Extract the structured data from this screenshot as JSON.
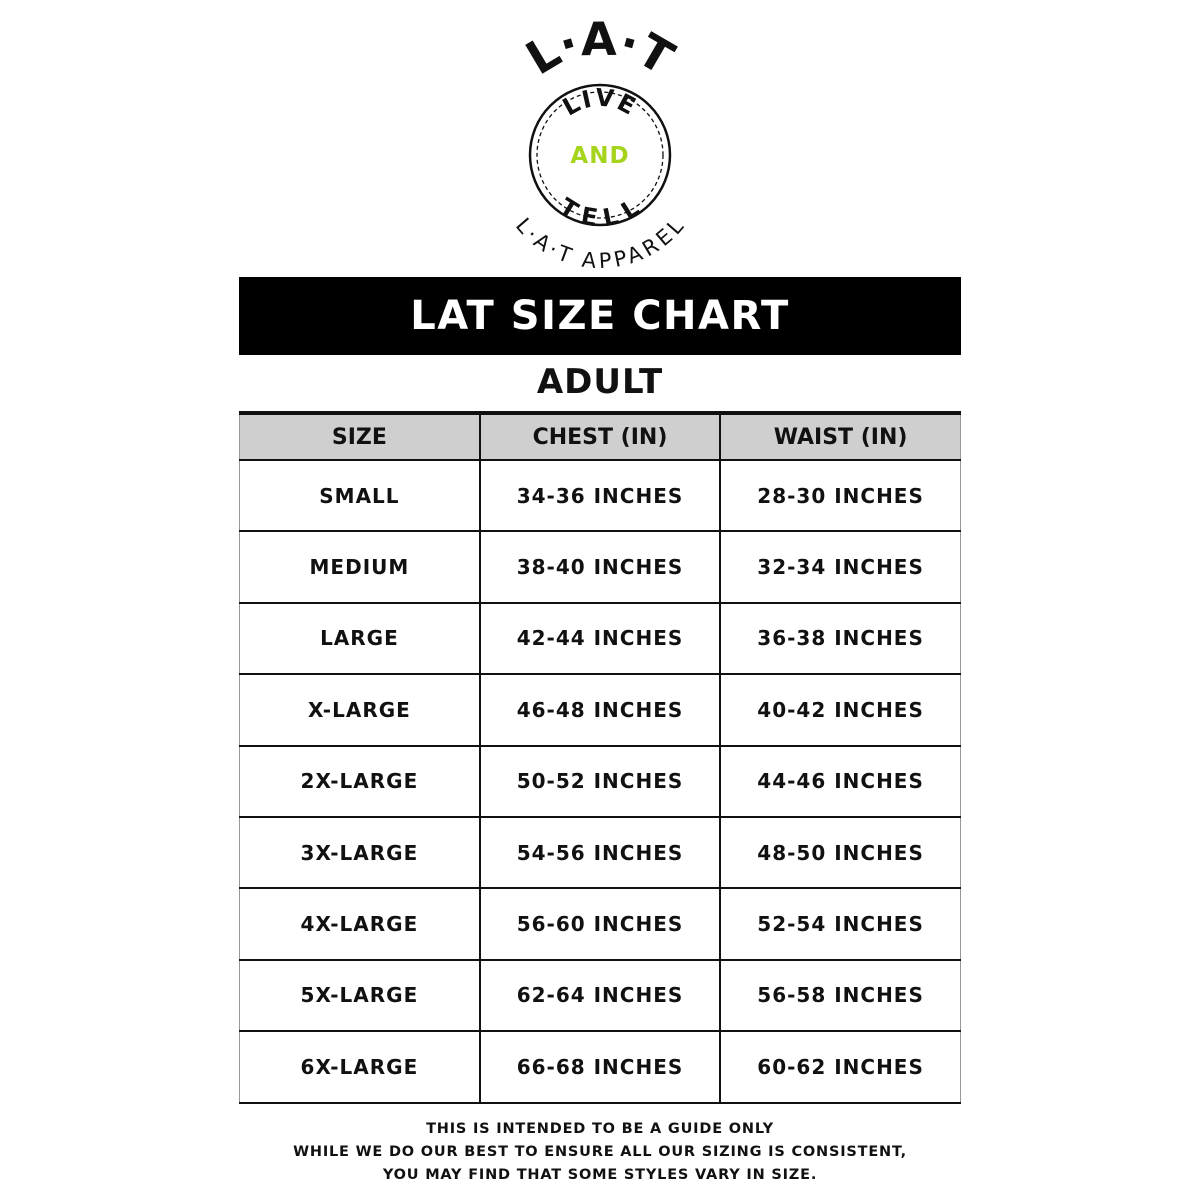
{
  "logo": {
    "top_text": "L·A·T",
    "inner_top": "LIVE",
    "inner_middle": "AND",
    "inner_bottom": "TELL",
    "bottom_text": "L·A·T APPAREL",
    "accent_color": "#a6d41c"
  },
  "title": "LAT SIZE CHART",
  "subtitle": "ADULT",
  "table": {
    "headers": [
      "SIZE",
      "CHEST (IN)",
      "WAIST (IN)"
    ],
    "rows": [
      [
        "SMALL",
        "34-36 INCHES",
        "28-30 INCHES"
      ],
      [
        "MEDIUM",
        "38-40 INCHES",
        "32-34 INCHES"
      ],
      [
        "LARGE",
        "42-44 INCHES",
        "36-38 INCHES"
      ],
      [
        "X-LARGE",
        "46-48 INCHES",
        "40-42 INCHES"
      ],
      [
        "2X-LARGE",
        "50-52 INCHES",
        "44-46 INCHES"
      ],
      [
        "3X-LARGE",
        "54-56 INCHES",
        "48-50 INCHES"
      ],
      [
        "4X-LARGE",
        "56-60 INCHES",
        "52-54 INCHES"
      ],
      [
        "5X-LARGE",
        "62-64 INCHES",
        "56-58 INCHES"
      ],
      [
        "6X-LARGE",
        "66-68 INCHES",
        "60-62 INCHES"
      ]
    ]
  },
  "disclaimer": [
    "THIS IS INTENDED TO BE A GUIDE ONLY",
    "WHILE WE DO OUR BEST TO ENSURE ALL OUR SIZING IS CONSISTENT,",
    "YOU MAY FIND THAT SOME STYLES VARY IN SIZE."
  ]
}
